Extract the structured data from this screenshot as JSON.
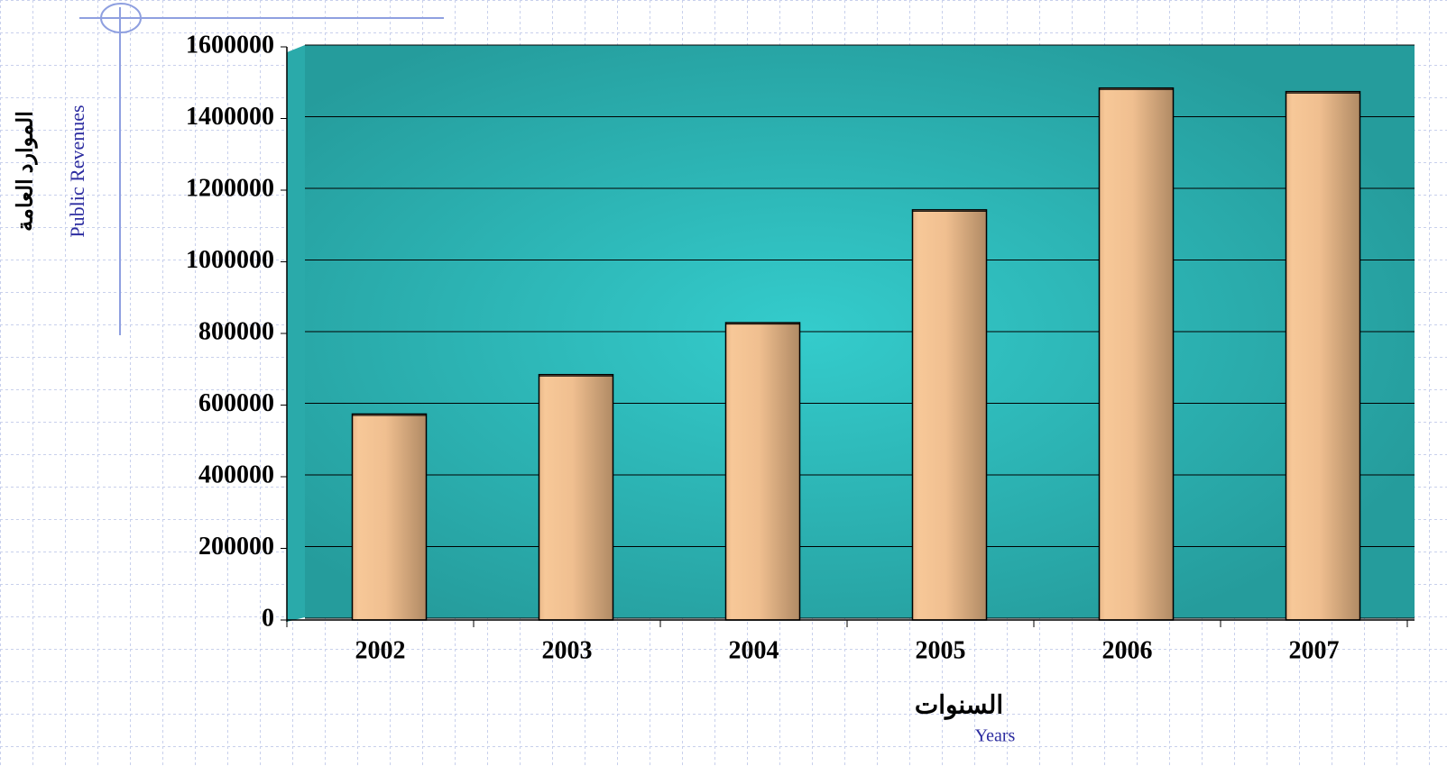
{
  "chart_data": {
    "type": "bar",
    "categories": [
      "2002",
      "2003",
      "2004",
      "2005",
      "2006",
      "2007"
    ],
    "values": [
      575000,
      685000,
      830000,
      1145000,
      1485000,
      1475000
    ],
    "color": "#f2c090",
    "ylim": [
      0,
      1600000
    ],
    "yticks": [
      0,
      200000,
      400000,
      600000,
      800000,
      1000000,
      1200000,
      1400000,
      1600000
    ],
    "grid": true,
    "y_axis_label": "الموارد العامة",
    "y_axis_label_en": "Public Revenues",
    "x_axis_label": "السنوات",
    "x_axis_label_en": "Years"
  }
}
